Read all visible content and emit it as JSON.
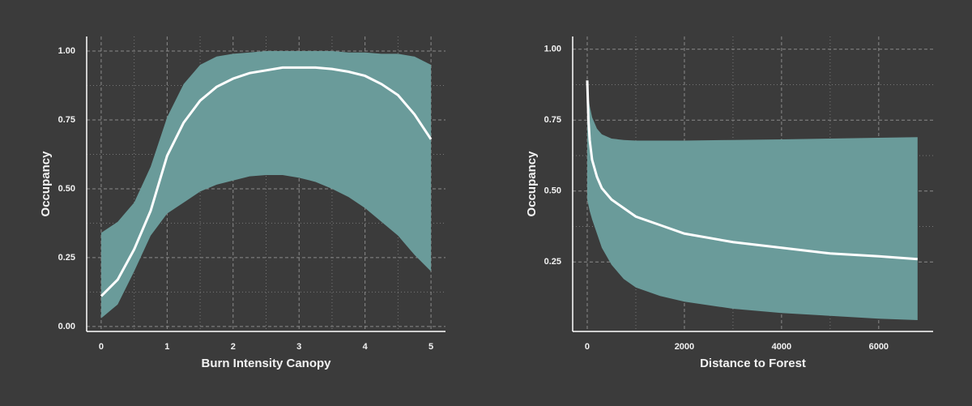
{
  "chart_data": [
    {
      "type": "line",
      "xlabel": "Burn Intensity Canopy",
      "ylabel": "Occupancy",
      "x": [
        0,
        0.25,
        0.5,
        0.75,
        1,
        1.25,
        1.5,
        1.75,
        2,
        2.25,
        2.5,
        2.75,
        3,
        3.25,
        3.5,
        3.75,
        4,
        4.25,
        4.5,
        4.75,
        5
      ],
      "values": [
        0.11,
        0.17,
        0.28,
        0.42,
        0.62,
        0.74,
        0.82,
        0.87,
        0.9,
        0.92,
        0.93,
        0.94,
        0.94,
        0.94,
        0.935,
        0.925,
        0.91,
        0.88,
        0.84,
        0.77,
        0.68
      ],
      "lower": [
        0.03,
        0.08,
        0.2,
        0.33,
        0.41,
        0.45,
        0.49,
        0.515,
        0.53,
        0.545,
        0.55,
        0.55,
        0.54,
        0.525,
        0.5,
        0.47,
        0.43,
        0.38,
        0.33,
        0.26,
        0.2
      ],
      "upper": [
        0.34,
        0.38,
        0.45,
        0.58,
        0.76,
        0.88,
        0.95,
        0.98,
        0.99,
        0.995,
        1.0,
        1.0,
        1.0,
        1.0,
        1.0,
        0.995,
        0.995,
        0.99,
        0.99,
        0.98,
        0.95
      ],
      "color": "#ffffff",
      "band_color": "#6a9b9a",
      "xlim": [
        -0.22,
        5.22
      ],
      "ylim": [
        -0.018,
        1.053
      ],
      "xticks": [
        0,
        1,
        2,
        3,
        4,
        5
      ],
      "yticks": [
        {
          "value": 0,
          "label": "0.00"
        },
        {
          "value": 0.25,
          "label": "0.25"
        },
        {
          "value": 0.5,
          "label": "0.50"
        },
        {
          "value": 0.75,
          "label": "0.75"
        },
        {
          "value": 1,
          "label": "1.00"
        }
      ],
      "grid": true
    },
    {
      "type": "line",
      "xlabel": "Distance to Forest",
      "ylabel": "Occupancy",
      "x": [
        0,
        25,
        50,
        100,
        200,
        300,
        500,
        750,
        1000,
        1500,
        2000,
        3000,
        4000,
        5000,
        6000,
        6800
      ],
      "values": [
        0.89,
        0.75,
        0.68,
        0.61,
        0.55,
        0.51,
        0.47,
        0.44,
        0.41,
        0.38,
        0.35,
        0.32,
        0.3,
        0.28,
        0.27,
        0.26
      ],
      "lower": [
        0.47,
        0.45,
        0.43,
        0.4,
        0.35,
        0.3,
        0.24,
        0.19,
        0.16,
        0.13,
        0.11,
        0.085,
        0.07,
        0.06,
        0.05,
        0.045
      ],
      "upper": [
        0.87,
        0.83,
        0.8,
        0.76,
        0.72,
        0.7,
        0.685,
        0.68,
        0.678,
        0.678,
        0.678,
        0.68,
        0.682,
        0.685,
        0.688,
        0.69
      ],
      "color": "#ffffff",
      "band_color": "#6a9b9a",
      "xlim": [
        -300,
        7120
      ],
      "ylim": [
        0.005,
        1.045
      ],
      "xticks": [
        0,
        2000,
        4000,
        6000
      ],
      "yticks": [
        {
          "value": 0.25,
          "label": "0.25"
        },
        {
          "value": 0.5,
          "label": "0.50"
        },
        {
          "value": 0.75,
          "label": "0.75"
        },
        {
          "value": 1,
          "label": "1.00"
        }
      ],
      "grid": true
    }
  ]
}
